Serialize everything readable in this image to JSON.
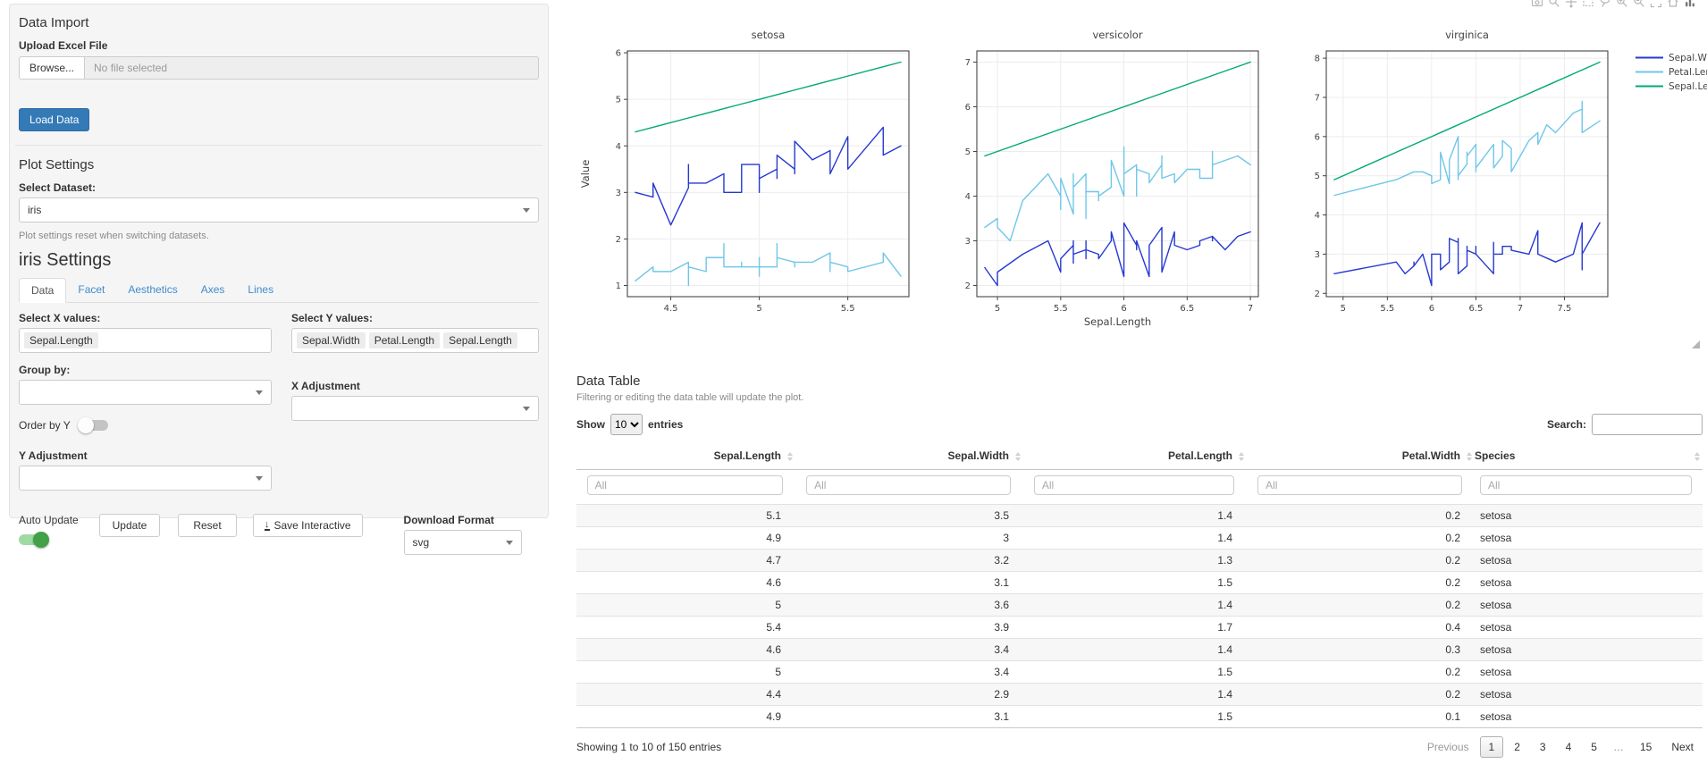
{
  "sidebar": {
    "data_import": {
      "title": "Data Import",
      "upload_label": "Upload Excel File",
      "browse_label": "Browse...",
      "file_placeholder": "No file selected",
      "load_button": "Load Data"
    },
    "plot_settings": {
      "title": "Plot Settings",
      "dataset_label": "Select Dataset:",
      "dataset_value": "iris",
      "help_text": "Plot settings reset when switching datasets."
    },
    "iris_settings": {
      "title": "iris Settings",
      "tabs": [
        {
          "label": "Data",
          "active": true
        },
        {
          "label": "Facet",
          "active": false
        },
        {
          "label": "Aesthetics",
          "active": false
        },
        {
          "label": "Axes",
          "active": false
        },
        {
          "label": "Lines",
          "active": false
        }
      ],
      "x_label": "Select X values:",
      "x_values": [
        "Sepal.Length"
      ],
      "y_label": "Select Y values:",
      "y_values": [
        "Sepal.Width",
        "Petal.Length",
        "Sepal.Length"
      ],
      "group_label": "Group by:",
      "order_toggle_label": "Order by Y",
      "order_toggle_on": false,
      "x_adjustment_label": "X Adjustment",
      "y_adjustment_label": "Y Adjustment",
      "auto_update_label": "Auto Update",
      "auto_update_on": true,
      "update_button": "Update",
      "reset_button": "Reset",
      "save_button": "Save Interactive",
      "download_label": "Download Format",
      "download_value": "svg"
    }
  },
  "plot": {
    "modebar_icons": [
      "camera-icon",
      "zoom-icon",
      "pan-icon",
      "box-select-icon",
      "lasso-icon",
      "zoom-in-icon",
      "zoom-out-icon",
      "autoscale-icon",
      "reset-axes-icon",
      "plotly-logo-icon"
    ]
  },
  "chart_data": {
    "type": "line",
    "facet_titles": [
      "setosa",
      "versicolor",
      "virginica"
    ],
    "xlabel": "Sepal.Length",
    "ylabel": "Value",
    "grid": true,
    "legend_position": "right",
    "x_tick_step": 0.5,
    "y_tick_step": 1,
    "axis_ranges": {
      "setosa": {
        "x": [
          4.3,
          5.8
        ],
        "y_ticks": [
          1,
          2,
          3,
          4,
          5,
          6
        ]
      },
      "versicolor": {
        "x": [
          4.9,
          7.0
        ],
        "y_ticks": [
          2,
          3,
          4,
          5,
          6,
          7
        ]
      },
      "virginica": {
        "x": [
          4.9,
          7.9
        ],
        "y_ticks": [
          2,
          3,
          4,
          5,
          6,
          7,
          8
        ]
      }
    },
    "x_column": 0,
    "columns": [
      "Sepal.Length",
      "Sepal.Width",
      "Petal.Length",
      "Petal.Width"
    ],
    "series": [
      {
        "name": "Sepal.Width",
        "color": "#2639d2",
        "column": 1
      },
      {
        "name": "Petal.Length",
        "color": "#6fc6e9",
        "column": 2
      },
      {
        "name": "Sepal.Length",
        "color": "#00a878",
        "column": 0
      }
    ],
    "data": {
      "setosa": [
        [
          5.1,
          3.5,
          1.4,
          0.2
        ],
        [
          4.9,
          3.0,
          1.4,
          0.2
        ],
        [
          4.7,
          3.2,
          1.3,
          0.2
        ],
        [
          4.6,
          3.1,
          1.5,
          0.2
        ],
        [
          5.0,
          3.6,
          1.4,
          0.2
        ],
        [
          5.4,
          3.9,
          1.7,
          0.4
        ],
        [
          4.6,
          3.4,
          1.4,
          0.3
        ],
        [
          5.0,
          3.4,
          1.5,
          0.2
        ],
        [
          4.4,
          2.9,
          1.4,
          0.2
        ],
        [
          4.9,
          3.1,
          1.5,
          0.1
        ],
        [
          5.4,
          3.7,
          1.5,
          0.2
        ],
        [
          4.8,
          3.4,
          1.6,
          0.2
        ],
        [
          4.8,
          3.0,
          1.4,
          0.1
        ],
        [
          4.3,
          3.0,
          1.1,
          0.1
        ],
        [
          5.8,
          4.0,
          1.2,
          0.2
        ],
        [
          5.7,
          4.4,
          1.5,
          0.4
        ],
        [
          5.4,
          3.9,
          1.3,
          0.4
        ],
        [
          5.1,
          3.5,
          1.4,
          0.3
        ],
        [
          5.7,
          3.8,
          1.7,
          0.3
        ],
        [
          5.1,
          3.8,
          1.5,
          0.3
        ],
        [
          5.4,
          3.4,
          1.7,
          0.2
        ],
        [
          5.1,
          3.7,
          1.5,
          0.4
        ],
        [
          4.6,
          3.6,
          1.0,
          0.2
        ],
        [
          5.1,
          3.3,
          1.7,
          0.5
        ],
        [
          4.8,
          3.4,
          1.9,
          0.2
        ],
        [
          5.0,
          3.0,
          1.6,
          0.2
        ],
        [
          5.0,
          3.4,
          1.6,
          0.4
        ],
        [
          5.2,
          3.5,
          1.5,
          0.2
        ],
        [
          5.2,
          3.4,
          1.4,
          0.2
        ],
        [
          4.7,
          3.2,
          1.6,
          0.2
        ],
        [
          4.8,
          3.1,
          1.6,
          0.2
        ],
        [
          5.4,
          3.4,
          1.5,
          0.4
        ],
        [
          5.2,
          4.1,
          1.5,
          0.1
        ],
        [
          5.5,
          4.2,
          1.4,
          0.2
        ],
        [
          4.9,
          3.1,
          1.5,
          0.2
        ],
        [
          5.0,
          3.2,
          1.2,
          0.2
        ],
        [
          5.5,
          3.5,
          1.3,
          0.2
        ],
        [
          4.9,
          3.6,
          1.4,
          0.1
        ],
        [
          4.4,
          3.0,
          1.3,
          0.2
        ],
        [
          5.1,
          3.4,
          1.5,
          0.2
        ],
        [
          5.0,
          3.5,
          1.3,
          0.3
        ],
        [
          4.5,
          2.3,
          1.3,
          0.3
        ],
        [
          4.4,
          3.2,
          1.3,
          0.2
        ],
        [
          5.0,
          3.5,
          1.6,
          0.6
        ],
        [
          5.1,
          3.8,
          1.9,
          0.4
        ],
        [
          4.8,
          3.0,
          1.4,
          0.3
        ],
        [
          5.1,
          3.8,
          1.6,
          0.2
        ],
        [
          4.6,
          3.2,
          1.4,
          0.2
        ],
        [
          5.3,
          3.7,
          1.5,
          0.2
        ],
        [
          5.0,
          3.3,
          1.4,
          0.2
        ]
      ],
      "versicolor": [
        [
          7.0,
          3.2,
          4.7,
          1.4
        ],
        [
          6.4,
          3.2,
          4.5,
          1.5
        ],
        [
          6.9,
          3.1,
          4.9,
          1.5
        ],
        [
          5.5,
          2.3,
          4.0,
          1.3
        ],
        [
          6.5,
          2.8,
          4.6,
          1.5
        ],
        [
          5.7,
          2.8,
          4.5,
          1.3
        ],
        [
          6.3,
          3.3,
          4.7,
          1.6
        ],
        [
          4.9,
          2.4,
          3.3,
          1.0
        ],
        [
          6.6,
          2.9,
          4.6,
          1.3
        ],
        [
          5.2,
          2.7,
          3.9,
          1.4
        ],
        [
          5.0,
          2.0,
          3.5,
          1.0
        ],
        [
          5.9,
          3.0,
          4.2,
          1.5
        ],
        [
          6.0,
          2.2,
          4.0,
          1.0
        ],
        [
          6.1,
          2.9,
          4.7,
          1.4
        ],
        [
          5.6,
          2.9,
          3.6,
          1.3
        ],
        [
          6.7,
          3.1,
          4.4,
          1.4
        ],
        [
          5.6,
          3.0,
          4.5,
          1.5
        ],
        [
          5.8,
          2.7,
          4.1,
          1.0
        ],
        [
          6.2,
          2.2,
          4.5,
          1.5
        ],
        [
          5.6,
          2.5,
          3.9,
          1.1
        ],
        [
          5.9,
          3.2,
          4.8,
          1.8
        ],
        [
          6.1,
          2.8,
          4.0,
          1.3
        ],
        [
          6.3,
          2.5,
          4.9,
          1.5
        ],
        [
          6.1,
          2.8,
          4.7,
          1.2
        ],
        [
          6.4,
          2.9,
          4.3,
          1.3
        ],
        [
          6.6,
          3.0,
          4.4,
          1.4
        ],
        [
          6.8,
          2.8,
          4.8,
          1.4
        ],
        [
          6.7,
          3.0,
          5.0,
          1.7
        ],
        [
          6.0,
          2.9,
          4.5,
          1.5
        ],
        [
          5.7,
          2.6,
          3.5,
          1.0
        ],
        [
          5.5,
          2.4,
          3.8,
          1.1
        ],
        [
          5.5,
          2.4,
          3.7,
          1.0
        ],
        [
          5.8,
          2.7,
          3.9,
          1.2
        ],
        [
          6.0,
          2.7,
          5.1,
          1.6
        ],
        [
          5.4,
          3.0,
          4.5,
          1.5
        ],
        [
          6.0,
          3.4,
          4.5,
          1.6
        ],
        [
          6.7,
          3.1,
          4.7,
          1.5
        ],
        [
          6.3,
          2.3,
          4.4,
          1.3
        ],
        [
          5.6,
          3.0,
          4.1,
          1.3
        ],
        [
          5.5,
          2.5,
          4.0,
          1.3
        ],
        [
          5.5,
          2.6,
          4.4,
          1.2
        ],
        [
          6.1,
          3.0,
          4.6,
          1.4
        ],
        [
          5.8,
          2.6,
          4.0,
          1.2
        ],
        [
          5.0,
          2.3,
          3.3,
          1.0
        ],
        [
          5.6,
          2.7,
          4.2,
          1.3
        ],
        [
          5.7,
          3.0,
          4.2,
          1.2
        ],
        [
          5.7,
          2.9,
          4.2,
          1.3
        ],
        [
          6.2,
          2.9,
          4.3,
          1.3
        ],
        [
          5.1,
          2.5,
          3.0,
          1.1
        ],
        [
          5.7,
          2.8,
          4.1,
          1.3
        ]
      ],
      "virginica": [
        [
          6.3,
          3.3,
          6.0,
          2.5
        ],
        [
          5.8,
          2.7,
          5.1,
          1.9
        ],
        [
          7.1,
          3.0,
          5.9,
          2.1
        ],
        [
          6.3,
          2.9,
          5.6,
          1.8
        ],
        [
          6.5,
          3.0,
          5.8,
          2.2
        ],
        [
          7.6,
          3.0,
          6.6,
          2.1
        ],
        [
          4.9,
          2.5,
          4.5,
          1.7
        ],
        [
          7.3,
          2.9,
          6.3,
          1.8
        ],
        [
          6.7,
          2.5,
          5.8,
          1.8
        ],
        [
          7.2,
          3.6,
          6.1,
          2.5
        ],
        [
          6.5,
          3.2,
          5.1,
          2.0
        ],
        [
          6.4,
          2.7,
          5.3,
          1.9
        ],
        [
          6.8,
          3.0,
          5.5,
          2.1
        ],
        [
          5.7,
          2.5,
          5.0,
          2.0
        ],
        [
          5.8,
          2.8,
          5.1,
          2.4
        ],
        [
          6.4,
          3.2,
          5.3,
          2.3
        ],
        [
          6.5,
          3.0,
          5.5,
          1.8
        ],
        [
          7.7,
          3.8,
          6.7,
          2.2
        ],
        [
          7.7,
          2.6,
          6.9,
          2.3
        ],
        [
          6.0,
          2.2,
          5.0,
          1.5
        ],
        [
          6.9,
          3.2,
          5.7,
          2.3
        ],
        [
          5.6,
          2.8,
          4.9,
          2.0
        ],
        [
          7.7,
          2.8,
          6.7,
          2.0
        ],
        [
          6.3,
          2.7,
          4.9,
          1.8
        ],
        [
          6.7,
          3.3,
          5.7,
          2.1
        ],
        [
          7.2,
          3.2,
          6.0,
          1.8
        ],
        [
          6.2,
          2.8,
          4.8,
          1.8
        ],
        [
          6.1,
          3.0,
          4.9,
          1.8
        ],
        [
          6.4,
          2.8,
          5.6,
          2.1
        ],
        [
          7.2,
          3.0,
          5.8,
          1.6
        ],
        [
          7.4,
          2.8,
          6.1,
          1.9
        ],
        [
          7.9,
          3.8,
          6.4,
          2.0
        ],
        [
          6.4,
          2.8,
          5.6,
          2.2
        ],
        [
          6.3,
          2.8,
          5.1,
          1.5
        ],
        [
          6.1,
          2.6,
          5.6,
          1.4
        ],
        [
          7.7,
          3.0,
          6.1,
          2.3
        ],
        [
          6.3,
          3.4,
          5.6,
          2.4
        ],
        [
          6.4,
          3.1,
          5.5,
          1.8
        ],
        [
          6.0,
          3.0,
          4.8,
          1.8
        ],
        [
          6.9,
          3.1,
          5.4,
          2.1
        ],
        [
          6.7,
          3.1,
          5.6,
          2.4
        ],
        [
          6.9,
          3.1,
          5.1,
          2.3
        ],
        [
          5.8,
          2.7,
          5.1,
          1.9
        ],
        [
          6.8,
          3.2,
          5.9,
          2.3
        ],
        [
          6.7,
          3.3,
          5.7,
          2.5
        ],
        [
          6.7,
          3.0,
          5.2,
          2.3
        ],
        [
          6.3,
          2.5,
          5.0,
          1.9
        ],
        [
          6.5,
          3.0,
          5.2,
          2.0
        ],
        [
          6.2,
          3.4,
          5.4,
          2.3
        ],
        [
          5.9,
          3.0,
          5.1,
          1.8
        ]
      ]
    }
  },
  "table": {
    "title": "Data Table",
    "subtitle": "Filtering or editing the data table will update the plot.",
    "show_label": "Show",
    "page_length": "10",
    "entries_label": "entries",
    "search_label": "Search:",
    "columns": [
      "Sepal.Length",
      "Sepal.Width",
      "Petal.Length",
      "Petal.Width",
      "Species"
    ],
    "filter_placeholder": "All",
    "rows": [
      [
        "5.1",
        "3.5",
        "1.4",
        "0.2",
        "setosa"
      ],
      [
        "4.9",
        "3",
        "1.4",
        "0.2",
        "setosa"
      ],
      [
        "4.7",
        "3.2",
        "1.3",
        "0.2",
        "setosa"
      ],
      [
        "4.6",
        "3.1",
        "1.5",
        "0.2",
        "setosa"
      ],
      [
        "5",
        "3.6",
        "1.4",
        "0.2",
        "setosa"
      ],
      [
        "5.4",
        "3.9",
        "1.7",
        "0.4",
        "setosa"
      ],
      [
        "4.6",
        "3.4",
        "1.4",
        "0.3",
        "setosa"
      ],
      [
        "5",
        "3.4",
        "1.5",
        "0.2",
        "setosa"
      ],
      [
        "4.4",
        "2.9",
        "1.4",
        "0.2",
        "setosa"
      ],
      [
        "4.9",
        "3.1",
        "1.5",
        "0.1",
        "setosa"
      ]
    ],
    "info": "Showing 1 to 10 of 150 entries",
    "pagination": {
      "previous": "Previous",
      "pages": [
        "1",
        "2",
        "3",
        "4",
        "5",
        "…",
        "15"
      ],
      "active": "1",
      "next": "Next"
    }
  }
}
